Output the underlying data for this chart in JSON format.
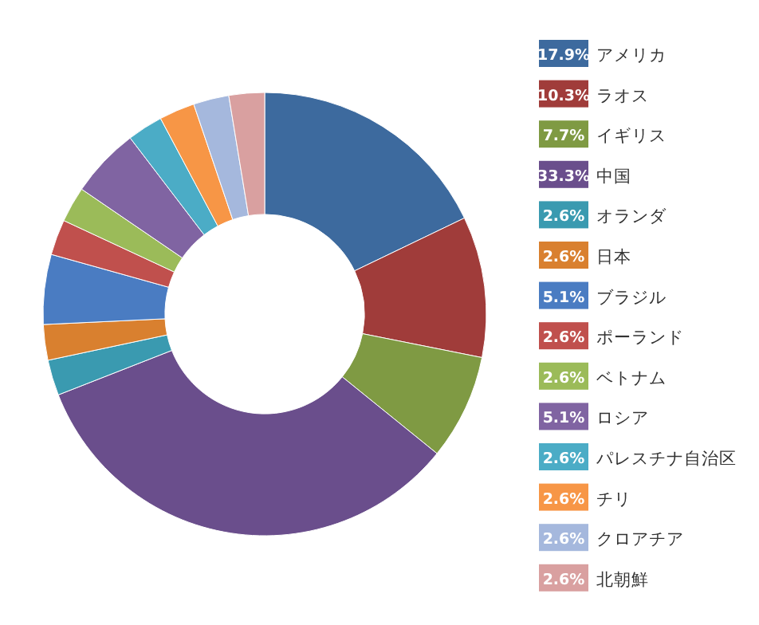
{
  "chart_data": {
    "type": "donut",
    "legend": "right",
    "categories": [
      "アメリカ",
      "ラオス",
      "イギリス",
      "中国",
      "オランダ",
      "日本",
      "ブラジル",
      "ポーランド",
      "ベトナム",
      "ロシア",
      "パレスチナ自治区",
      "チリ",
      "クロアチア",
      "北朝鮮"
    ],
    "values": [
      17.9,
      10.3,
      7.7,
      33.3,
      2.6,
      2.6,
      5.1,
      2.6,
      2.6,
      5.1,
      2.6,
      2.6,
      2.6,
      2.6
    ],
    "value_labels": [
      "17.9%",
      "10.3%",
      "7.7%",
      "33.3%",
      "2.6%",
      "2.6%",
      "5.1%",
      "2.6%",
      "2.6%",
      "5.1%",
      "2.6%",
      "2.6%",
      "2.6%",
      "2.6%"
    ],
    "colors": [
      "#3d6a9e",
      "#a03c3a",
      "#7f9a43",
      "#6a4e8c",
      "#3a9ab0",
      "#d9802f",
      "#4a7cc2",
      "#c0504d",
      "#9bbb59",
      "#8064a2",
      "#4bacc6",
      "#f79646",
      "#a5b8dd",
      "#d9a0a0"
    ]
  }
}
